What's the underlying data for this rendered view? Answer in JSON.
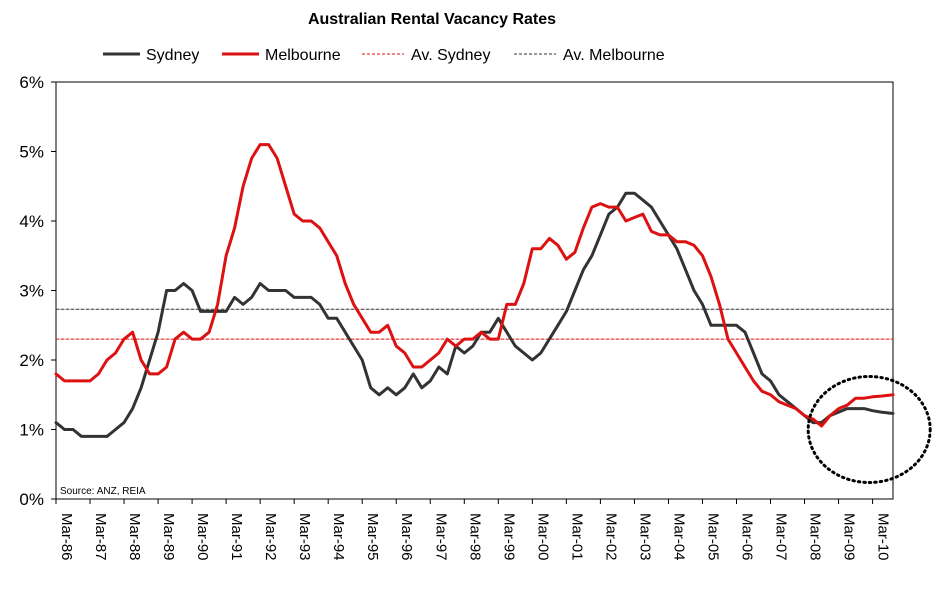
{
  "chart_data": {
    "type": "line",
    "title": "Australian Rental Vacancy Rates",
    "source": "Source: ANZ, REIA",
    "ylim": [
      0,
      6
    ],
    "y_ticks": [
      "0%",
      "1%",
      "2%",
      "3%",
      "4%",
      "5%",
      "6%"
    ],
    "x_ticks": [
      "Mar-86",
      "Mar-87",
      "Mar-88",
      "Mar-89",
      "Mar-90",
      "Mar-91",
      "Mar-92",
      "Mar-93",
      "Mar-94",
      "Mar-95",
      "Mar-96",
      "Mar-97",
      "Mar-98",
      "Mar-99",
      "Mar-00",
      "Mar-01",
      "Mar-02",
      "Mar-03",
      "Mar-04",
      "Mar-05",
      "Mar-06",
      "Mar-07",
      "Mar-08",
      "Mar-09",
      "Mar-10"
    ],
    "x_range": [
      1986.0,
      2010.6
    ],
    "grid": false,
    "legend": "top",
    "series": [
      {
        "name": "Sydney",
        "color": "#333333",
        "style": "solid",
        "points": [
          [
            1986.0,
            1.1
          ],
          [
            1986.25,
            1.0
          ],
          [
            1986.5,
            1.0
          ],
          [
            1986.75,
            0.9
          ],
          [
            1987.0,
            0.9
          ],
          [
            1987.25,
            0.9
          ],
          [
            1987.5,
            0.9
          ],
          [
            1987.75,
            1.0
          ],
          [
            1988.0,
            1.1
          ],
          [
            1988.25,
            1.3
          ],
          [
            1988.5,
            1.6
          ],
          [
            1988.75,
            2.0
          ],
          [
            1989.0,
            2.4
          ],
          [
            1989.25,
            3.0
          ],
          [
            1989.5,
            3.0
          ],
          [
            1989.75,
            3.1
          ],
          [
            1990.0,
            3.0
          ],
          [
            1990.25,
            2.7
          ],
          [
            1990.5,
            2.7
          ],
          [
            1990.75,
            2.7
          ],
          [
            1991.0,
            2.7
          ],
          [
            1991.25,
            2.9
          ],
          [
            1991.5,
            2.8
          ],
          [
            1991.75,
            2.9
          ],
          [
            1992.0,
            3.1
          ],
          [
            1992.25,
            3.0
          ],
          [
            1992.5,
            3.0
          ],
          [
            1992.75,
            3.0
          ],
          [
            1993.0,
            2.9
          ],
          [
            1993.25,
            2.9
          ],
          [
            1993.5,
            2.9
          ],
          [
            1993.75,
            2.8
          ],
          [
            1994.0,
            2.6
          ],
          [
            1994.25,
            2.6
          ],
          [
            1994.5,
            2.4
          ],
          [
            1994.75,
            2.2
          ],
          [
            1995.0,
            2.0
          ],
          [
            1995.25,
            1.6
          ],
          [
            1995.5,
            1.5
          ],
          [
            1995.75,
            1.6
          ],
          [
            1996.0,
            1.5
          ],
          [
            1996.25,
            1.6
          ],
          [
            1996.5,
            1.8
          ],
          [
            1996.75,
            1.6
          ],
          [
            1997.0,
            1.7
          ],
          [
            1997.25,
            1.9
          ],
          [
            1997.5,
            1.8
          ],
          [
            1997.75,
            2.2
          ],
          [
            1998.0,
            2.1
          ],
          [
            1998.25,
            2.2
          ],
          [
            1998.5,
            2.4
          ],
          [
            1998.75,
            2.4
          ],
          [
            1999.0,
            2.6
          ],
          [
            1999.25,
            2.4
          ],
          [
            1999.5,
            2.2
          ],
          [
            1999.75,
            2.1
          ],
          [
            2000.0,
            2.0
          ],
          [
            2000.25,
            2.1
          ],
          [
            2000.5,
            2.3
          ],
          [
            2000.75,
            2.5
          ],
          [
            2001.0,
            2.7
          ],
          [
            2001.25,
            3.0
          ],
          [
            2001.5,
            3.3
          ],
          [
            2001.75,
            3.5
          ],
          [
            2002.0,
            3.8
          ],
          [
            2002.25,
            4.1
          ],
          [
            2002.5,
            4.2
          ],
          [
            2002.75,
            4.4
          ],
          [
            2003.0,
            4.4
          ],
          [
            2003.25,
            4.3
          ],
          [
            2003.5,
            4.2
          ],
          [
            2003.75,
            4.0
          ],
          [
            2004.0,
            3.8
          ],
          [
            2004.25,
            3.6
          ],
          [
            2004.5,
            3.3
          ],
          [
            2004.75,
            3.0
          ],
          [
            2005.0,
            2.8
          ],
          [
            2005.25,
            2.5
          ],
          [
            2005.5,
            2.5
          ],
          [
            2005.75,
            2.5
          ],
          [
            2006.0,
            2.5
          ],
          [
            2006.25,
            2.4
          ],
          [
            2006.5,
            2.1
          ],
          [
            2006.75,
            1.8
          ],
          [
            2007.0,
            1.7
          ],
          [
            2007.25,
            1.5
          ],
          [
            2007.5,
            1.4
          ],
          [
            2007.75,
            1.3
          ],
          [
            2008.0,
            1.2
          ],
          [
            2008.25,
            1.1
          ],
          [
            2008.5,
            1.1
          ],
          [
            2008.75,
            1.2
          ],
          [
            2009.0,
            1.25
          ],
          [
            2009.25,
            1.3
          ],
          [
            2009.5,
            1.3
          ],
          [
            2009.75,
            1.3
          ],
          [
            2010.0,
            1.27
          ],
          [
            2010.25,
            1.25
          ],
          [
            2010.6,
            1.23
          ]
        ]
      },
      {
        "name": "Melbourne",
        "color": "#dd1111",
        "style": "solid",
        "points": [
          [
            1986.0,
            1.8
          ],
          [
            1986.25,
            1.7
          ],
          [
            1986.5,
            1.7
          ],
          [
            1986.75,
            1.7
          ],
          [
            1987.0,
            1.7
          ],
          [
            1987.25,
            1.8
          ],
          [
            1987.5,
            2.0
          ],
          [
            1987.75,
            2.1
          ],
          [
            1988.0,
            2.3
          ],
          [
            1988.25,
            2.4
          ],
          [
            1988.5,
            2.0
          ],
          [
            1988.75,
            1.8
          ],
          [
            1989.0,
            1.8
          ],
          [
            1989.25,
            1.9
          ],
          [
            1989.5,
            2.3
          ],
          [
            1989.75,
            2.4
          ],
          [
            1990.0,
            2.3
          ],
          [
            1990.25,
            2.3
          ],
          [
            1990.5,
            2.4
          ],
          [
            1990.75,
            2.8
          ],
          [
            1991.0,
            3.5
          ],
          [
            1991.25,
            3.9
          ],
          [
            1991.5,
            4.5
          ],
          [
            1991.75,
            4.9
          ],
          [
            1992.0,
            5.1
          ],
          [
            1992.25,
            5.1
          ],
          [
            1992.5,
            4.9
          ],
          [
            1992.75,
            4.5
          ],
          [
            1993.0,
            4.1
          ],
          [
            1993.25,
            4.0
          ],
          [
            1993.5,
            4.0
          ],
          [
            1993.75,
            3.9
          ],
          [
            1994.0,
            3.7
          ],
          [
            1994.25,
            3.5
          ],
          [
            1994.5,
            3.1
          ],
          [
            1994.75,
            2.8
          ],
          [
            1995.0,
            2.6
          ],
          [
            1995.25,
            2.4
          ],
          [
            1995.5,
            2.4
          ],
          [
            1995.75,
            2.5
          ],
          [
            1996.0,
            2.2
          ],
          [
            1996.25,
            2.1
          ],
          [
            1996.5,
            1.9
          ],
          [
            1996.75,
            1.9
          ],
          [
            1997.0,
            2.0
          ],
          [
            1997.25,
            2.1
          ],
          [
            1997.5,
            2.3
          ],
          [
            1997.75,
            2.2
          ],
          [
            1998.0,
            2.3
          ],
          [
            1998.25,
            2.3
          ],
          [
            1998.5,
            2.4
          ],
          [
            1998.75,
            2.3
          ],
          [
            1999.0,
            2.3
          ],
          [
            1999.25,
            2.8
          ],
          [
            1999.5,
            2.8
          ],
          [
            1999.75,
            3.1
          ],
          [
            2000.0,
            3.6
          ],
          [
            2000.25,
            3.6
          ],
          [
            2000.5,
            3.75
          ],
          [
            2000.75,
            3.65
          ],
          [
            2001.0,
            3.45
          ],
          [
            2001.25,
            3.55
          ],
          [
            2001.5,
            3.9
          ],
          [
            2001.75,
            4.2
          ],
          [
            2002.0,
            4.25
          ],
          [
            2002.25,
            4.2
          ],
          [
            2002.5,
            4.2
          ],
          [
            2002.75,
            4.0
          ],
          [
            2003.0,
            4.05
          ],
          [
            2003.25,
            4.1
          ],
          [
            2003.5,
            3.85
          ],
          [
            2003.75,
            3.8
          ],
          [
            2004.0,
            3.8
          ],
          [
            2004.25,
            3.7
          ],
          [
            2004.5,
            3.7
          ],
          [
            2004.75,
            3.65
          ],
          [
            2005.0,
            3.5
          ],
          [
            2005.25,
            3.2
          ],
          [
            2005.5,
            2.8
          ],
          [
            2005.75,
            2.3
          ],
          [
            2006.0,
            2.1
          ],
          [
            2006.25,
            1.9
          ],
          [
            2006.5,
            1.7
          ],
          [
            2006.75,
            1.55
          ],
          [
            2007.0,
            1.5
          ],
          [
            2007.25,
            1.4
          ],
          [
            2007.5,
            1.35
          ],
          [
            2007.75,
            1.3
          ],
          [
            2008.0,
            1.2
          ],
          [
            2008.25,
            1.15
          ],
          [
            2008.5,
            1.05
          ],
          [
            2008.75,
            1.2
          ],
          [
            2009.0,
            1.3
          ],
          [
            2009.25,
            1.35
          ],
          [
            2009.5,
            1.45
          ],
          [
            2009.75,
            1.45
          ],
          [
            2010.0,
            1.47
          ],
          [
            2010.25,
            1.48
          ],
          [
            2010.6,
            1.5
          ]
        ]
      },
      {
        "name": "Av. Sydney",
        "color": "#dd1111",
        "style": "dotted",
        "points": [
          [
            1986.0,
            2.3
          ],
          [
            2010.6,
            2.3
          ]
        ]
      },
      {
        "name": "Av. Melbourne",
        "color": "#333333",
        "style": "dotted",
        "points": [
          [
            1986.0,
            2.73
          ],
          [
            2010.6,
            2.73
          ]
        ]
      }
    ],
    "annotations": [
      {
        "type": "dotted-ellipse",
        "around": "2008.8 to 2010.6",
        "color": "#000000"
      }
    ]
  }
}
